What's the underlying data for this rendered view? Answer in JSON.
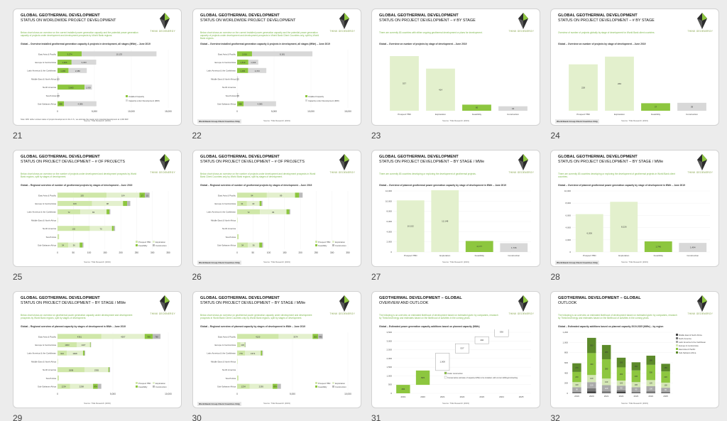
{
  "colors": {
    "green": "#8dc63f",
    "lightgreen": "#cfe7a8",
    "pale": "#e3f0cd",
    "grey": "#d8d8d8",
    "title_green": "#7ab648"
  },
  "icons": {
    "logo": "think-geoenergy-leaf-logo"
  },
  "logo_text": "THINK GEOENERGY",
  "tag": "World Bank Group Client Countries Only",
  "source": "Source: TGE Research (2019)",
  "slides": [
    {
      "num": "21",
      "title": "GLOBAL GEOTHERMAL DEVELOPMENT",
      "subtitle": "STATUS ON WORLDWIDE PROJECT DEVELOPMENT",
      "desc": "Below chart shows an overview on the current installed power generation capacity and the potential power generation capacity of projects under development and development prospects by World Bank regions.",
      "ctitle": "Global – Overview installed geothermal generation capacity & projects in development, all stages (MWe) – June 2019",
      "note": "Note: With rather unclear status of project development in the U.S., we estimate the nearer term potential development at 1,000 MW"
    },
    {
      "num": "22",
      "title": "GLOBAL GEOTHERMAL DEVELOPMENT",
      "subtitle": "STATUS ON WORLDWIDE PROJECT DEVELOPMENT",
      "desc": "Below chart shows an overview on the current installed power generation capacity and the potential power generation capacity of projects under development and development prospects in World Bank Client Countries only, split by World Bank regions.",
      "ctitle": "Global – Overview installed geothermal generation capacity & projects in development, all stages (MWe) – June 2019"
    },
    {
      "num": "23",
      "title": "GLOBAL GEOTHERMAL DEVELOPMENT",
      "subtitle": "STATUS ON PROJECT DEVELOPMENT – # BY STAGE",
      "desc": "There are currently 83 countries with either ongoing geothermal development or plans for development.",
      "ctitle": "Global – Overview on number of projects by stage of development – June 2019"
    },
    {
      "num": "24",
      "title": "GLOBAL GEOTHERMAL DEVELOPMENT",
      "subtitle": "STATUS ON PROJECT DEVELOPMENT – # BY STAGE",
      "desc": "Overview of number of projects globally by stage of development for World Bank client countries.",
      "ctitle": "Global – Overview on number of projects by stage of development – June 2019"
    },
    {
      "num": "25",
      "title": "GLOBAL GEOTHERMAL DEVELOPMENT",
      "subtitle": "STATUS ON PROJECT DEVELOPMENT – # OF PROJECTS",
      "desc": "Below chart shows an overview on the number of projects under development and development prospects by World Bank regions, split by stages of development.",
      "ctitle": "Global – Regional overview of number of geothermal projects by stages of development – June 2019"
    },
    {
      "num": "26",
      "title": "GLOBAL GEOTHERMAL DEVELOPMENT",
      "subtitle": "STATUS ON PROJECT DEVELOPMENT – # OF PROJECTS",
      "desc": "Below chart shows an overview on the number of projects under development and development prospects in World Bank Client Countries only by World Bank regions, split by stages of development.",
      "ctitle": "Global – Regional overview of number of geothermal projects by stages of development – June 2019"
    },
    {
      "num": "27",
      "title": "GLOBAL GEOTHERMAL DEVELOPMENT",
      "subtitle": "STATUS ON PROJECT DEVELOPMENT – BY STAGE / MWe",
      "desc": "There are currently 83 countries developing or exploring the development of geothermal projects.",
      "ctitle": "Global – Overview of planned geothermal power generation capacity by stage of development in MWe – June 2019"
    },
    {
      "num": "28",
      "title": "GLOBAL GEOTHERMAL DEVELOPMENT",
      "subtitle": "STATUS ON PROJECT DEVELOPMENT – BY STAGE / MWe",
      "desc": "There are currently 83 countries developing or exploring the development of geothermal projects in World Bank client countries.",
      "ctitle": "Global – Overview of planned geothermal power generation capacity by stage of development in MWe – June 2019"
    },
    {
      "num": "29",
      "title": "GLOBAL GEOTHERMAL DEVELOPMENT",
      "subtitle": "STATUS ON PROJECT DEVELOPMENT – BY STAGE / MWe",
      "desc": "Below chart shows an overview on geothermal power generation capacity under development and development prospects by World Bank regions, split by stages of development.",
      "ctitle": "Global – Regional overview of planned capacity by stages of development in MWe – June 2019"
    },
    {
      "num": "30",
      "title": "GLOBAL GEOTHERMAL DEVELOPMENT",
      "subtitle": "STATUS ON PROJECT DEVELOPMENT – BY STAGE / MWe",
      "desc": "Below chart shows an overview on geothermal power generation capacity under development and development prospects in World Bank Client Countries only by World Bank regions, split by stages of development.",
      "ctitle": "Global – Regional overview of planned capacity by stages of development in MWe – June 2019"
    },
    {
      "num": "31",
      "title": "GEOTHERMAL DEVELOPMENT – GLOBAL",
      "subtitle": "OVERVIEW AND OUTLOOK",
      "desc": "The following is an overview on estimated likelihood of development based on estimated given by companies, research by ThinkGeoEnergy and estimates based on the likelihood of activities in the coming years.",
      "ctitle": "Global – Estimated power generation capacity additions based on planned capacity (MWe)"
    },
    {
      "num": "32",
      "title": "GEOTHERMAL DEVELOPMENT – GLOBAL",
      "subtitle": "OUTLOOK",
      "desc": "The following is an overview on estimated likelihood of development based on estimated given by companies, research by ThinkGeoEnergy and estimates based on the likelihood of activities in the coming years.",
      "ctitle": "Global – Estimated capacity additions based on planned capacity 2019-2025 (MWe) – by region"
    }
  ],
  "chart_data": [
    {
      "slide": "21",
      "type": "bar",
      "orientation": "horizontal",
      "categories": [
        "East Asia & Pacific",
        "Europe & Central Asia",
        "Latin America & the Caribbean",
        "Middle East & North Africa",
        "North America",
        "South Asia",
        "Sub-Saharan Africa"
      ],
      "series": [
        {
          "name": "Installed Capacity",
          "values": [
            3274,
            1906,
            1484,
            0,
            3665,
            0,
            886
          ]
        },
        {
          "name": "Capacity under Development (MW)",
          "values": [
            10133,
            3333,
            2480,
            115,
            1000,
            130,
            4386
          ]
        }
      ],
      "labels": [
        [
          "3,274",
          "10,133"
        ],
        [
          "1,906",
          "3,333"
        ],
        [
          "1,484",
          "2,480"
        ],
        [
          "",
          "115"
        ],
        [
          "3,665",
          "1,000"
        ],
        [
          "",
          "130"
        ],
        [
          "886",
          "4,386"
        ]
      ],
      "xticks": [
        "0",
        "5,000",
        "10,000",
        "15,000"
      ],
      "xlim": [
        0,
        15000
      ],
      "legend": "bottom-right"
    },
    {
      "slide": "22",
      "type": "bar",
      "orientation": "horizontal",
      "categories": [
        "East Asia & Pacific",
        "Europe & Central Asia",
        "Latin America & the Caribbean",
        "Middle East & North Africa",
        "North America",
        "South Asia",
        "Sub-Saharan Africa"
      ],
      "series": [
        {
          "name": "Installed Capacity",
          "values": [
            2016,
            1519,
            1484,
            0,
            0,
            0,
            886
          ]
        },
        {
          "name": "Capacity under Development (MW)",
          "values": [
            8181,
            1343,
            2472,
            115,
            0,
            130,
            4385
          ]
        }
      ],
      "labels": [
        [
          "2,016",
          "8,181"
        ],
        [
          "1,519",
          "1,343"
        ],
        [
          "1,484",
          "2,472"
        ],
        [
          "",
          "115"
        ],
        [
          "",
          ""
        ],
        [
          "",
          "130"
        ],
        [
          "886",
          "4,385"
        ]
      ],
      "xticks": [
        "0",
        "5,000",
        "10,000",
        "15,000"
      ],
      "xlim": [
        0,
        15000
      ],
      "legend": "bottom-right"
    },
    {
      "slide": "23",
      "type": "bar",
      "categories": [
        "Prospect TBD",
        "Exploration",
        "Feasibility",
        "Construction"
      ],
      "values": [
        537,
        414,
        60,
        44
      ],
      "ylim": [
        0,
        600
      ]
    },
    {
      "slide": "24",
      "type": "bar",
      "categories": [
        "Prospect TBD",
        "Exploration",
        "Feasibility",
        "Construction"
      ],
      "values": [
        228,
        266,
        37,
        39
      ],
      "ylim": [
        0,
        300
      ]
    },
    {
      "slide": "25",
      "type": "bar",
      "orientation": "horizontal",
      "stacked": true,
      "categories": [
        "East Asia & Pacific",
        "Europe & Central Asia",
        "Latin America & the Caribbean",
        "Middle East & North Africa",
        "North America",
        "South Asia",
        "Sub-Saharan Africa"
      ],
      "series": [
        {
          "name": "Prospect TBD",
          "values": [
            155,
            109,
            72,
            1,
            102,
            5,
            34
          ]
        },
        {
          "name": "Exploration",
          "values": [
            104,
            98,
            83,
            0,
            70,
            0,
            36
          ]
        },
        {
          "name": "Feasibility",
          "values": [
            17,
            13,
            9,
            0,
            6,
            0,
            9
          ]
        },
        {
          "name": "Construction",
          "values": [
            15,
            10,
            3,
            0,
            4,
            0,
            3
          ]
        }
      ],
      "xticks": [
        "0",
        "50",
        "100",
        "150",
        "200",
        "250",
        "300",
        "350"
      ],
      "xlim": [
        0,
        350
      ],
      "legend": "bottom-right"
    },
    {
      "slide": "26",
      "type": "bar",
      "orientation": "horizontal",
      "stacked": true,
      "categories": [
        "East Asia & Pacific",
        "Europe & Central Asia",
        "Latin America & the Caribbean",
        "Middle East & North Africa",
        "North America",
        "South Asia",
        "Sub-Saharan Africa"
      ],
      "series": [
        {
          "name": "Prospect TBD",
          "values": [
            94,
            31,
            72,
            1,
            0,
            5,
            34
          ]
        },
        {
          "name": "Exploration",
          "values": [
            89,
            40,
            84,
            0,
            0,
            0,
            36
          ]
        },
        {
          "name": "Feasibility",
          "values": [
            13,
            6,
            9,
            0,
            0,
            0,
            9
          ]
        },
        {
          "name": "Construction",
          "values": [
            11,
            3,
            3,
            0,
            0,
            0,
            3
          ]
        }
      ],
      "xticks": [
        "0",
        "50",
        "100",
        "150",
        "200",
        "250",
        "300",
        "350"
      ],
      "xlim": [
        0,
        350
      ],
      "legend": "bottom-right"
    },
    {
      "slide": "27",
      "type": "bar",
      "categories": [
        "Prospect TBD",
        "Exploration",
        "Feasibility",
        "Construction"
      ],
      "values": [
        10152,
        12148,
        2177,
        1736
      ],
      "labels": [
        "10,152",
        "12,148",
        "2,177",
        "1,736"
      ],
      "ylim": [
        0,
        12000
      ],
      "yticks": [
        "0",
        "2,000",
        "4,000",
        "6,000",
        "8,000",
        "10,000",
        "12,000"
      ]
    },
    {
      "slide": "28",
      "type": "bar",
      "categories": [
        "Prospect TBD",
        "Exploration",
        "Feasibility",
        "Construction"
      ],
      "values": [
        6206,
        8226,
        1746,
        1494
      ],
      "labels": [
        "6,206",
        "8,226",
        "1,746",
        "1,494"
      ],
      "ylim": [
        0,
        10000
      ],
      "yticks": [
        "0",
        "2,000",
        "4,000",
        "6,000",
        "8,000",
        "10,000"
      ]
    },
    {
      "slide": "29",
      "type": "bar",
      "orientation": "horizontal",
      "stacked": true,
      "categories": [
        "East Asia & Pacific",
        "Europe & Central Asia",
        "Latin America & the Caribbean",
        "Middle East & North Africa",
        "North America",
        "South Asia",
        "Sub-Saharan Africa"
      ],
      "series": [
        {
          "name": "Prospect TBD",
          "values": [
            4361,
            1903,
            924,
            15,
            2698,
            130,
            1234
          ]
        },
        {
          "name": "Exploration",
          "values": [
            4297,
            1327,
            1608,
            0,
            2355,
            0,
            2298
          ]
        },
        {
          "name": "Feasibility",
          "values": [
            789,
            62,
            145,
            0,
            95,
            0,
            474
          ]
        },
        {
          "name": "Construction",
          "values": [
            780,
            40,
            72,
            0,
            80,
            0,
            344
          ]
        }
      ],
      "xticks": [
        "0",
        "5,000",
        "10,000"
      ],
      "xlim": [
        0,
        11000
      ],
      "legend": "bottom-right"
    },
    {
      "slide": "30",
      "type": "bar",
      "orientation": "horizontal",
      "stacked": true,
      "categories": [
        "East Asia & Pacific",
        "Europe & Central Asia",
        "Latin America & the Caribbean",
        "Middle East & North Africa",
        "North America",
        "South Asia",
        "Sub-Saharan Africa"
      ],
      "series": [
        {
          "name": "Prospect TBD",
          "values": [
            4120,
            321,
            776,
            15,
            0,
            130,
            1234
          ]
        },
        {
          "name": "Exploration",
          "values": [
            3374,
            436,
            1574,
            0,
            0,
            0,
            2295
          ]
        },
        {
          "name": "Feasibility",
          "values": [
            560,
            40,
            140,
            0,
            0,
            0,
            474
          ]
        },
        {
          "name": "Construction",
          "values": [
            446,
            20,
            72,
            0,
            0,
            0,
            344
          ]
        }
      ],
      "xticks": [
        "0",
        "5,000",
        "10,000"
      ],
      "xlim": [
        0,
        11000
      ],
      "legend": "bottom-right"
    },
    {
      "slide": "31",
      "type": "bar",
      "categories": [
        "2019",
        "2020",
        "2021",
        "2022",
        "2023",
        "2024",
        "2025"
      ],
      "values": [
        484,
        823,
        1000,
        537,
        402,
        530,
        330
      ],
      "labels": [
        "484",
        "823",
        "1,000",
        "537",
        "402",
        "530",
        "330"
      ],
      "ylim": [
        0,
        3500
      ],
      "yticks": [
        "0",
        "500",
        "1,000",
        "1,500",
        "2,000",
        "2,500",
        "3,000",
        "3,500"
      ],
      "legend": [
        "Under construction",
        "Conservative estimate of capacity (MW) to be installed, with current drilling/contracting"
      ]
    },
    {
      "slide": "32",
      "type": "bar",
      "stacked": true,
      "categories": [
        "2019",
        "2020",
        "2021",
        "2022",
        "2023",
        "2024",
        "2025"
      ],
      "ylim": [
        0,
        1200
      ],
      "yticks": [
        "0",
        "200",
        "400",
        "600",
        "800",
        "1,000",
        "1,200"
      ],
      "series": [
        {
          "name": "Middle East & North Africa",
          "values": [
            0,
            40,
            0,
            30,
            0,
            0,
            0
          ]
        },
        {
          "name": "North America",
          "values": [
            30,
            60,
            40,
            30,
            30,
            40,
            30
          ]
        },
        {
          "name": "Latin America & the Caribbean",
          "values": [
            90,
            120,
            120,
            90,
            90,
            100,
            80
          ]
        },
        {
          "name": "Europe & Central Asia",
          "values": [
            100,
            140,
            130,
            100,
            100,
            120,
            100
          ]
        },
        {
          "name": "East Asia & Pacific",
          "values": [
            200,
            430,
            380,
            260,
            230,
            300,
            220
          ]
        },
        {
          "name": "Sub-Saharan Africa",
          "values": [
            170,
            300,
            280,
            190,
            160,
            180,
            150
          ]
        }
      ],
      "legend": "right"
    }
  ]
}
